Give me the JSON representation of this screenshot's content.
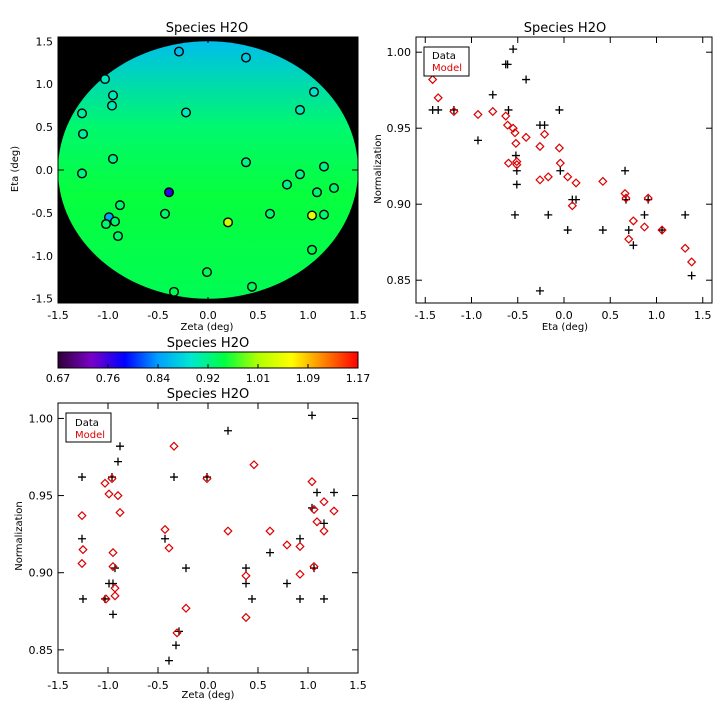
{
  "chart_data": [
    {
      "type": "heatmap",
      "title": "Species H2O",
      "xlabel": "Zeta (deg)",
      "ylabel": "Eta (deg)",
      "xlim": [
        -1.5,
        1.5
      ],
      "ylim": [
        -1.55,
        1.55
      ],
      "xticks": [
        "-1.5",
        "-1.0",
        "-0.5",
        "0.0",
        "0.5",
        "1.0",
        "1.5"
      ],
      "yticks": [
        "-1.5",
        "-1.0",
        "-0.5",
        "0.0",
        "0.5",
        "1.0",
        "1.5"
      ],
      "background_color": "#000000",
      "marker_edge_color": "#000000",
      "field": {
        "shape": "disk",
        "center": [
          0,
          0
        ],
        "radius_deg": 1.5,
        "gradient": [
          {
            "eta": 1.5,
            "value": 0.86
          },
          {
            "eta": 0.5,
            "value": 0.93
          },
          {
            "eta": -0.3,
            "value": 0.95
          },
          {
            "eta": -1.5,
            "value": 0.94
          }
        ]
      },
      "stations": [
        {
          "zeta": -0.29,
          "eta": 1.38,
          "value": 0.86
        },
        {
          "zeta": 0.38,
          "eta": 1.31,
          "value": 0.87
        },
        {
          "zeta": -1.03,
          "eta": 1.06,
          "value": 0.9
        },
        {
          "zeta": -0.95,
          "eta": 0.87,
          "value": 0.9
        },
        {
          "zeta": -0.96,
          "eta": 0.75,
          "value": 0.9
        },
        {
          "zeta": -1.26,
          "eta": 0.66,
          "value": 0.91
        },
        {
          "zeta": -0.22,
          "eta": 0.67,
          "value": 0.9
        },
        {
          "zeta": 1.06,
          "eta": 0.91,
          "value": 0.89
        },
        {
          "zeta": 0.92,
          "eta": 0.7,
          "value": 0.9
        },
        {
          "zeta": -1.25,
          "eta": 0.42,
          "value": 0.91
        },
        {
          "zeta": -0.95,
          "eta": 0.13,
          "value": 0.92
        },
        {
          "zeta": 0.38,
          "eta": 0.09,
          "value": 0.92
        },
        {
          "zeta": 1.16,
          "eta": 0.04,
          "value": 0.92
        },
        {
          "zeta": -1.26,
          "eta": -0.04,
          "value": 0.92
        },
        {
          "zeta": 0.92,
          "eta": -0.05,
          "value": 0.92
        },
        {
          "zeta": 0.79,
          "eta": -0.17,
          "value": 0.92
        },
        {
          "zeta": 1.26,
          "eta": -0.21,
          "value": 0.93
        },
        {
          "zeta": 1.09,
          "eta": -0.26,
          "value": 0.93
        },
        {
          "zeta": -0.39,
          "eta": -0.26,
          "value": 0.76
        },
        {
          "zeta": -0.88,
          "eta": -0.41,
          "value": 0.93
        },
        {
          "zeta": -0.43,
          "eta": -0.51,
          "value": 0.93
        },
        {
          "zeta": 0.62,
          "eta": -0.51,
          "value": 0.93
        },
        {
          "zeta": 1.04,
          "eta": -0.53,
          "value": 1.04
        },
        {
          "zeta": 1.16,
          "eta": -0.52,
          "value": 0.93
        },
        {
          "zeta": -0.99,
          "eta": -0.55,
          "value": 0.84
        },
        {
          "zeta": -0.93,
          "eta": -0.6,
          "value": 0.93
        },
        {
          "zeta": -1.02,
          "eta": -0.63,
          "value": 0.93
        },
        {
          "zeta": 0.2,
          "eta": -0.61,
          "value": 1.02
        },
        {
          "zeta": -0.9,
          "eta": -0.77,
          "value": 0.93
        },
        {
          "zeta": 1.04,
          "eta": -0.93,
          "value": 0.94
        },
        {
          "zeta": -0.01,
          "eta": -1.19,
          "value": 0.94
        },
        {
          "zeta": 0.44,
          "eta": -1.36,
          "value": 0.94
        },
        {
          "zeta": -0.34,
          "eta": -1.42,
          "value": 0.94
        }
      ]
    },
    {
      "type": "colorbar",
      "title": "Species H2O",
      "range": [
        0.67,
        1.17
      ],
      "tick_labels": [
        "0.67",
        "0.76",
        "0.84",
        "0.92",
        "1.01",
        "1.09",
        "1.17"
      ],
      "colormap": [
        "#2e0038",
        "#7a00c8",
        "#0000ff",
        "#00a0ff",
        "#00e8d0",
        "#00ff40",
        "#b0ff00",
        "#ffff00",
        "#ff8000",
        "#ff0000"
      ]
    },
    {
      "type": "scatter",
      "title": "Species H2O",
      "xlabel": "Eta (deg)",
      "ylabel": "Normalization",
      "xlim": [
        -1.6,
        1.6
      ],
      "ylim": [
        0.835,
        1.01
      ],
      "xticks": [
        "-1.5",
        "-1.0",
        "-0.5",
        "0.0",
        "0.5",
        "1.0",
        "1.5"
      ],
      "yticks": [
        "0.85",
        "0.90",
        "0.95",
        "1.00"
      ],
      "legend": {
        "position": "top-left",
        "labels": [
          "Data",
          "Model"
        ]
      },
      "series": [
        {
          "name": "Data",
          "marker": "+",
          "color": "#000000",
          "points": [
            [
              -1.42,
              0.962
            ],
            [
              -1.36,
              0.962
            ],
            [
              -1.19,
              0.962
            ],
            [
              -0.93,
              0.942
            ],
            [
              -0.77,
              0.972
            ],
            [
              -0.63,
              0.992
            ],
            [
              -0.61,
              0.992
            ],
            [
              -0.6,
              0.962
            ],
            [
              -0.55,
              1.002
            ],
            [
              -0.53,
              0.893
            ],
            [
              -0.52,
              0.932
            ],
            [
              -0.51,
              0.922
            ],
            [
              -0.51,
              0.913
            ],
            [
              -0.41,
              0.982
            ],
            [
              -0.26,
              0.843
            ],
            [
              -0.26,
              0.952
            ],
            [
              -0.21,
              0.952
            ],
            [
              -0.17,
              0.893
            ],
            [
              -0.05,
              0.962
            ],
            [
              -0.04,
              0.922
            ],
            [
              0.04,
              0.883
            ],
            [
              0.09,
              0.903
            ],
            [
              0.13,
              0.903
            ],
            [
              0.42,
              0.883
            ],
            [
              0.66,
              0.922
            ],
            [
              0.67,
              0.903
            ],
            [
              0.7,
              0.883
            ],
            [
              0.75,
              0.873
            ],
            [
              0.87,
              0.893
            ],
            [
              0.91,
              0.903
            ],
            [
              1.06,
              0.883
            ],
            [
              1.31,
              0.893
            ],
            [
              1.38,
              0.853
            ]
          ]
        },
        {
          "name": "Model",
          "marker": "diamond",
          "color": "#dd0000",
          "points": [
            [
              -1.42,
              0.982
            ],
            [
              -1.36,
              0.97
            ],
            [
              -1.19,
              0.961
            ],
            [
              -0.93,
              0.959
            ],
            [
              -0.77,
              0.961
            ],
            [
              -0.63,
              0.958
            ],
            [
              -0.61,
              0.952
            ],
            [
              -0.6,
              0.927
            ],
            [
              -0.55,
              0.95
            ],
            [
              -0.53,
              0.947
            ],
            [
              -0.52,
              0.94
            ],
            [
              -0.51,
              0.928
            ],
            [
              -0.51,
              0.926
            ],
            [
              -0.41,
              0.944
            ],
            [
              -0.26,
              0.916
            ],
            [
              -0.26,
              0.938
            ],
            [
              -0.21,
              0.946
            ],
            [
              -0.17,
              0.918
            ],
            [
              -0.05,
              0.937
            ],
            [
              -0.04,
              0.927
            ],
            [
              0.04,
              0.918
            ],
            [
              0.09,
              0.899
            ],
            [
              0.13,
              0.914
            ],
            [
              0.42,
              0.915
            ],
            [
              0.66,
              0.907
            ],
            [
              0.67,
              0.904
            ],
            [
              0.7,
              0.877
            ],
            [
              0.75,
              0.889
            ],
            [
              0.87,
              0.885
            ],
            [
              0.91,
              0.904
            ],
            [
              1.06,
              0.883
            ],
            [
              1.31,
              0.871
            ],
            [
              1.38,
              0.862
            ]
          ]
        }
      ]
    },
    {
      "type": "scatter",
      "title": "Species H2O",
      "xlabel": "Zeta (deg)",
      "ylabel": "Normalization",
      "xlim": [
        -1.5,
        1.5
      ],
      "ylim": [
        0.835,
        1.01
      ],
      "xticks": [
        "-1.5",
        "-1.0",
        "-0.5",
        "0.0",
        "0.5",
        "1.0",
        "1.5"
      ],
      "yticks": [
        "0.85",
        "0.90",
        "0.95",
        "1.00"
      ],
      "legend": {
        "position": "top-left",
        "labels": [
          "Data",
          "Model"
        ]
      },
      "series": [
        {
          "name": "Data",
          "marker": "+",
          "color": "#000000",
          "points": [
            [
              -1.26,
              0.962
            ],
            [
              -1.26,
              0.922
            ],
            [
              -1.25,
              0.883
            ],
            [
              -1.03,
              0.883
            ],
            [
              -1.02,
              0.992
            ],
            [
              -0.99,
              0.893
            ],
            [
              -0.96,
              0.962
            ],
            [
              -0.95,
              0.873
            ],
            [
              -0.95,
              0.893
            ],
            [
              -0.93,
              0.903
            ],
            [
              -0.9,
              0.972
            ],
            [
              -0.88,
              0.982
            ],
            [
              -0.43,
              0.922
            ],
            [
              -0.39,
              0.843
            ],
            [
              -0.34,
              0.962
            ],
            [
              -0.32,
              0.853
            ],
            [
              -0.29,
              0.862
            ],
            [
              -0.22,
              0.903
            ],
            [
              -0.01,
              0.962
            ],
            [
              0.2,
              0.992
            ],
            [
              0.38,
              0.903
            ],
            [
              0.38,
              0.893
            ],
            [
              0.44,
              0.883
            ],
            [
              0.62,
              0.913
            ],
            [
              0.79,
              0.893
            ],
            [
              0.92,
              0.922
            ],
            [
              0.92,
              0.883
            ],
            [
              1.04,
              1.002
            ],
            [
              1.04,
              0.942
            ],
            [
              1.06,
              0.903
            ],
            [
              1.09,
              0.952
            ],
            [
              1.16,
              0.932
            ],
            [
              1.16,
              0.883
            ],
            [
              1.26,
              0.952
            ]
          ]
        },
        {
          "name": "Model",
          "marker": "diamond",
          "color": "#dd0000",
          "points": [
            [
              -1.26,
              0.937
            ],
            [
              -1.26,
              0.906
            ],
            [
              -1.25,
              0.915
            ],
            [
              -1.03,
              0.958
            ],
            [
              -1.02,
              0.883
            ],
            [
              -0.99,
              0.951
            ],
            [
              -0.96,
              0.961
            ],
            [
              -0.95,
              0.913
            ],
            [
              -0.95,
              0.904
            ],
            [
              -0.93,
              0.89
            ],
            [
              -0.93,
              0.885
            ],
            [
              -0.9,
              0.95
            ],
            [
              -0.88,
              0.939
            ],
            [
              -0.43,
              0.928
            ],
            [
              -0.39,
              0.916
            ],
            [
              -0.34,
              0.982
            ],
            [
              -0.31,
              0.861
            ],
            [
              -0.22,
              0.877
            ],
            [
              -0.01,
              0.961
            ],
            [
              0.2,
              0.927
            ],
            [
              0.38,
              0.898
            ],
            [
              0.38,
              0.871
            ],
            [
              0.46,
              0.97
            ],
            [
              0.62,
              0.927
            ],
            [
              0.79,
              0.918
            ],
            [
              0.92,
              0.899
            ],
            [
              0.92,
              0.917
            ],
            [
              1.04,
              0.959
            ],
            [
              1.06,
              0.904
            ],
            [
              1.06,
              0.941
            ],
            [
              1.09,
              0.933
            ],
            [
              1.16,
              0.927
            ],
            [
              1.16,
              0.946
            ],
            [
              1.26,
              0.94
            ]
          ]
        }
      ]
    }
  ]
}
